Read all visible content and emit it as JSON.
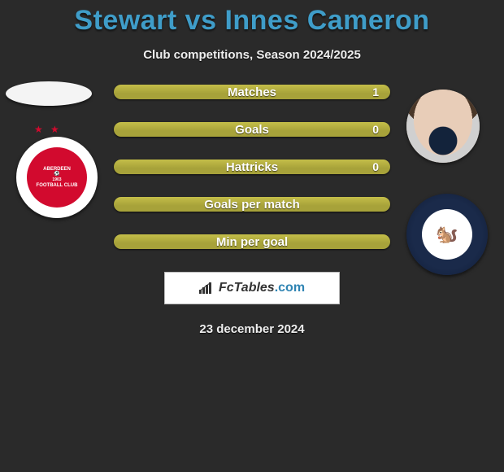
{
  "title": "Stewart vs Innes Cameron",
  "title_color": "#3f9dc9",
  "subtitle": "Club competitions, Season 2024/2025",
  "background_color": "#2a2a2a",
  "bar_fill_color": "#a7a23a",
  "bar_fill_hl": "#c4be49",
  "stats": [
    {
      "label": "Matches",
      "value": "1"
    },
    {
      "label": "Goals",
      "value": "0"
    },
    {
      "label": "Hattricks",
      "value": "0"
    },
    {
      "label": "Goals per match",
      "value": ""
    },
    {
      "label": "Min per goal",
      "value": ""
    }
  ],
  "left_badge": {
    "name": "Aberdeen FC",
    "primary": "#d20a2e",
    "text": "ABERDEEN\nFOOTBALL CLUB",
    "year": "1903"
  },
  "right_badge": {
    "name": "Kilmarnock FC",
    "primary": "#14284a"
  },
  "brand": {
    "name": "FcTables",
    "domain": ".com"
  },
  "date": "23 december 2024"
}
